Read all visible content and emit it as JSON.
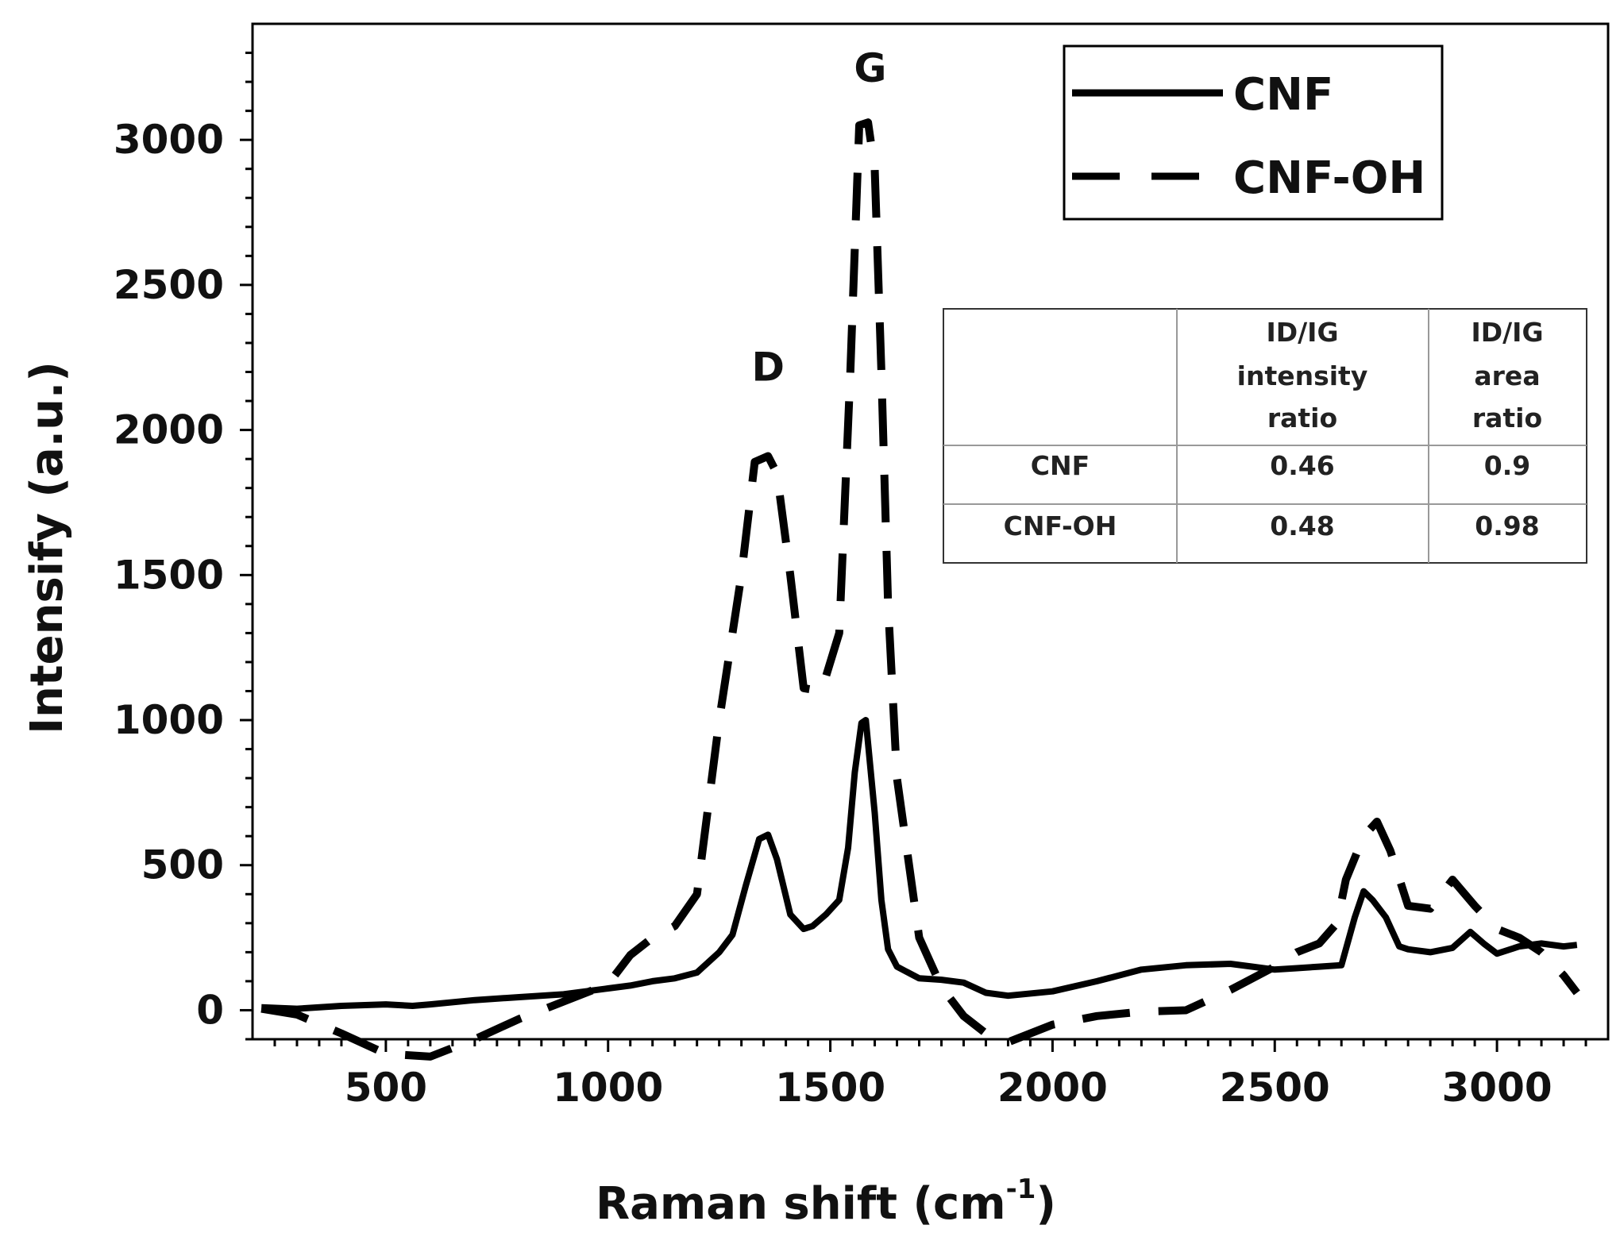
{
  "chart_data": {
    "type": "line",
    "xlabel": "Raman shift (cm",
    "xlabel_sup": "-1",
    "xlabel_close": ")",
    "ylabel": "Intensify (a.u.)",
    "xlim": [
      200,
      3250
    ],
    "ylim": [
      -100,
      3400
    ],
    "xticks": [
      500,
      1000,
      1500,
      2000,
      2500,
      3000
    ],
    "yticks": [
      0,
      500,
      1000,
      1500,
      2000,
      2500,
      3000
    ],
    "xtick_labels": [
      "500",
      "1000",
      "1500",
      "2000",
      "2500",
      "3000"
    ],
    "ytick_labels": [
      "0",
      "500",
      "1000",
      "1500",
      "2000",
      "2500",
      "3000"
    ],
    "annotations": [
      {
        "text": "D",
        "x": 1360,
        "y": 2170
      },
      {
        "text": "G",
        "x": 1590,
        "y": 3200
      }
    ],
    "legend": {
      "position": "top-right",
      "entries": [
        "CNF",
        "CNF-OH"
      ]
    },
    "series": [
      {
        "name": "CNF",
        "style": "solid",
        "x": [
          220,
          300,
          400,
          500,
          560,
          600,
          700,
          800,
          900,
          1000,
          1050,
          1100,
          1150,
          1200,
          1250,
          1280,
          1310,
          1340,
          1360,
          1380,
          1410,
          1440,
          1460,
          1490,
          1520,
          1540,
          1555,
          1570,
          1580,
          1600,
          1615,
          1630,
          1650,
          1700,
          1750,
          1800,
          1850,
          1900,
          2000,
          2100,
          2200,
          2300,
          2400,
          2450,
          2500,
          2550,
          2600,
          2650,
          2680,
          2700,
          2720,
          2750,
          2780,
          2800,
          2850,
          2900,
          2940,
          2970,
          3000,
          3050,
          3100,
          3150,
          3180
        ],
        "values": [
          10,
          5,
          15,
          20,
          15,
          20,
          35,
          45,
          55,
          75,
          85,
          100,
          110,
          130,
          200,
          260,
          430,
          590,
          605,
          520,
          330,
          280,
          290,
          330,
          380,
          560,
          820,
          990,
          1000,
          680,
          380,
          210,
          150,
          110,
          105,
          95,
          60,
          50,
          65,
          100,
          140,
          155,
          160,
          150,
          140,
          145,
          150,
          155,
          320,
          410,
          380,
          320,
          220,
          210,
          200,
          215,
          270,
          230,
          195,
          220,
          230,
          220,
          225
        ]
      },
      {
        "name": "CNF-OH",
        "style": "dashed",
        "x": [
          220,
          300,
          400,
          500,
          600,
          700,
          800,
          900,
          1000,
          1050,
          1100,
          1150,
          1200,
          1250,
          1300,
          1330,
          1360,
          1380,
          1410,
          1440,
          1480,
          1520,
          1545,
          1565,
          1585,
          1600,
          1615,
          1630,
          1650,
          1700,
          1750,
          1800,
          1850,
          1900,
          2000,
          2100,
          2200,
          2300,
          2400,
          2500,
          2550,
          2600,
          2640,
          2660,
          2700,
          2730,
          2760,
          2800,
          2850,
          2900,
          2950,
          3000,
          3050,
          3100,
          3150,
          3180
        ],
        "values": [
          5,
          -15,
          -80,
          -150,
          -160,
          -100,
          -30,
          30,
          90,
          190,
          250,
          290,
          400,
          1000,
          1500,
          1890,
          1910,
          1850,
          1500,
          1110,
          1100,
          1300,
          2200,
          3050,
          3060,
          2900,
          2200,
          1400,
          800,
          250,
          80,
          -20,
          -80,
          -110,
          -50,
          -20,
          -5,
          0,
          70,
          150,
          200,
          230,
          300,
          450,
          600,
          650,
          550,
          360,
          350,
          450,
          360,
          280,
          250,
          200,
          120,
          60
        ]
      }
    ],
    "table": {
      "headers": [
        [
          "",
          "",
          ""
        ],
        [
          "ID/IG",
          "intensity",
          "ratio"
        ],
        [
          "ID/IG",
          "area",
          "ratio"
        ]
      ],
      "rows": [
        {
          "label": "CNF",
          "intensity": "0.46",
          "area": "0.9"
        },
        {
          "label": "CNF-OH",
          "intensity": "0.48",
          "area": "0.98"
        }
      ]
    }
  }
}
